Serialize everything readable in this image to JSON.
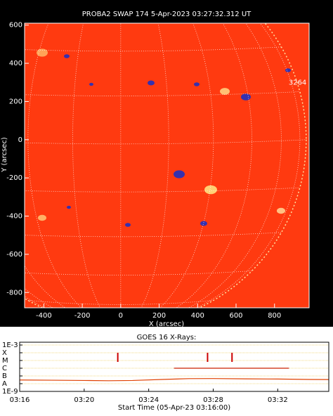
{
  "chart_data": [
    {
      "type": "image",
      "title": "PROBA2 SWAP 174  5-Apr-2023 03:27:32.312 UT",
      "xlabel": "X (arcsec)",
      "ylabel": "Y (arcsec)",
      "xlim": [
        -500,
        980
      ],
      "ylim": [
        -880,
        610
      ],
      "xticks": [
        -400,
        -200,
        0,
        200,
        400,
        600,
        800
      ],
      "yticks": [
        -800,
        -600,
        -400,
        -200,
        0,
        200,
        400,
        600
      ],
      "annotations": [
        {
          "text": "3264",
          "x": 920,
          "y": 300
        }
      ]
    },
    {
      "type": "line",
      "title": "GOES 16 X-Rays:",
      "xlabel": "Start Time (05-Apr-23 03:16:00)",
      "log_y": true,
      "xlim": [
        "03:16:00",
        "03:35:10"
      ],
      "xticks": [
        "03:16",
        "03:20",
        "03:24",
        "03:28",
        "03:32"
      ],
      "ylim": [
        1e-09,
        0.001
      ],
      "yticks": [
        {
          "value": 0.001,
          "label": "1E-3"
        },
        {
          "value": 0.0001,
          "label": "X"
        },
        {
          "value": 1e-05,
          "label": "M"
        },
        {
          "value": 1e-06,
          "label": "C"
        },
        {
          "value": 1e-07,
          "label": "B"
        },
        {
          "value": 1e-08,
          "label": "A"
        },
        {
          "value": 1e-09,
          "label": "1E-9"
        }
      ],
      "grid": true,
      "series": [
        {
          "color": "#e04000",
          "x": [
            "03:16:00",
            "03:18:00",
            "03:20:00",
            "03:21:30",
            "03:23:00",
            "03:25:00",
            "03:26:30",
            "03:28:00",
            "03:30:00",
            "03:32:00",
            "03:34:00",
            "03:35:10"
          ],
          "values": [
            3e-08,
            2.8e-08,
            2.6e-08,
            2.4e-08,
            2.6e-08,
            3.6e-08,
            4.5e-08,
            4.6e-08,
            4.2e-08,
            4e-08,
            3.5e-08,
            3.4e-08
          ]
        },
        {
          "color": "#cc2200",
          "x": [
            "03:25:34",
            "03:32:42"
          ],
          "values": [
            1e-06,
            1e-06
          ]
        }
      ],
      "events": {
        "color": "#cc0000",
        "x": [
          "03:22:05",
          "03:27:39",
          "03:29:10"
        ]
      }
    }
  ]
}
